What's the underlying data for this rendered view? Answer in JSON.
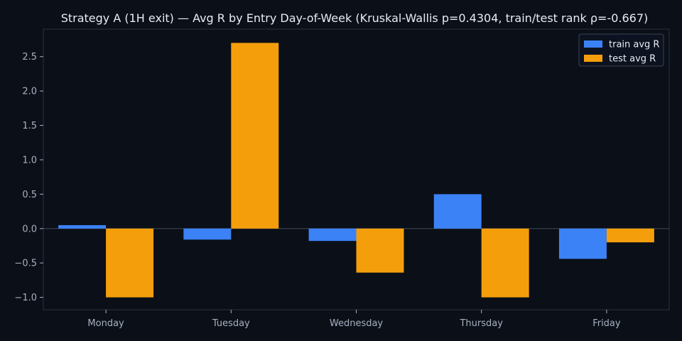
{
  "colors": {
    "background": "#0b0f17",
    "axes_background": "#0b0f17",
    "frame": "#2a3140",
    "zero_line": "#3f4a5c",
    "tick_text": "#a7b1c2",
    "title_text": "#e6edf3",
    "train": "#3b82f6",
    "test": "#f59e0b"
  },
  "chart_data": {
    "type": "bar",
    "title": "Strategy A (1H exit) — Avg R by Entry Day-of-Week (Kruskal-Wallis p=0.4304, train/test rank ρ=-0.667)",
    "xlabel": "",
    "ylabel": "",
    "categories": [
      "Monday",
      "Tuesday",
      "Wednesday",
      "Thursday",
      "Friday"
    ],
    "series": [
      {
        "name": "train avg R",
        "color": "#3b82f6",
        "values": [
          0.05,
          -0.16,
          -0.18,
          0.5,
          -0.44
        ]
      },
      {
        "name": "test avg R",
        "color": "#f59e0b",
        "values": [
          -1.0,
          2.7,
          -0.64,
          -1.0,
          -0.2
        ]
      }
    ],
    "ylim": [
      -1.18,
      2.9
    ],
    "yticks": [
      -1.0,
      -0.5,
      0.0,
      0.5,
      1.0,
      1.5,
      2.0,
      2.5
    ],
    "ytick_labels": [
      "−1.0",
      "−0.5",
      "0.0",
      "0.5",
      "1.0",
      "1.5",
      "2.0",
      "2.5"
    ],
    "legend_position": "top-right",
    "grid": false
  }
}
